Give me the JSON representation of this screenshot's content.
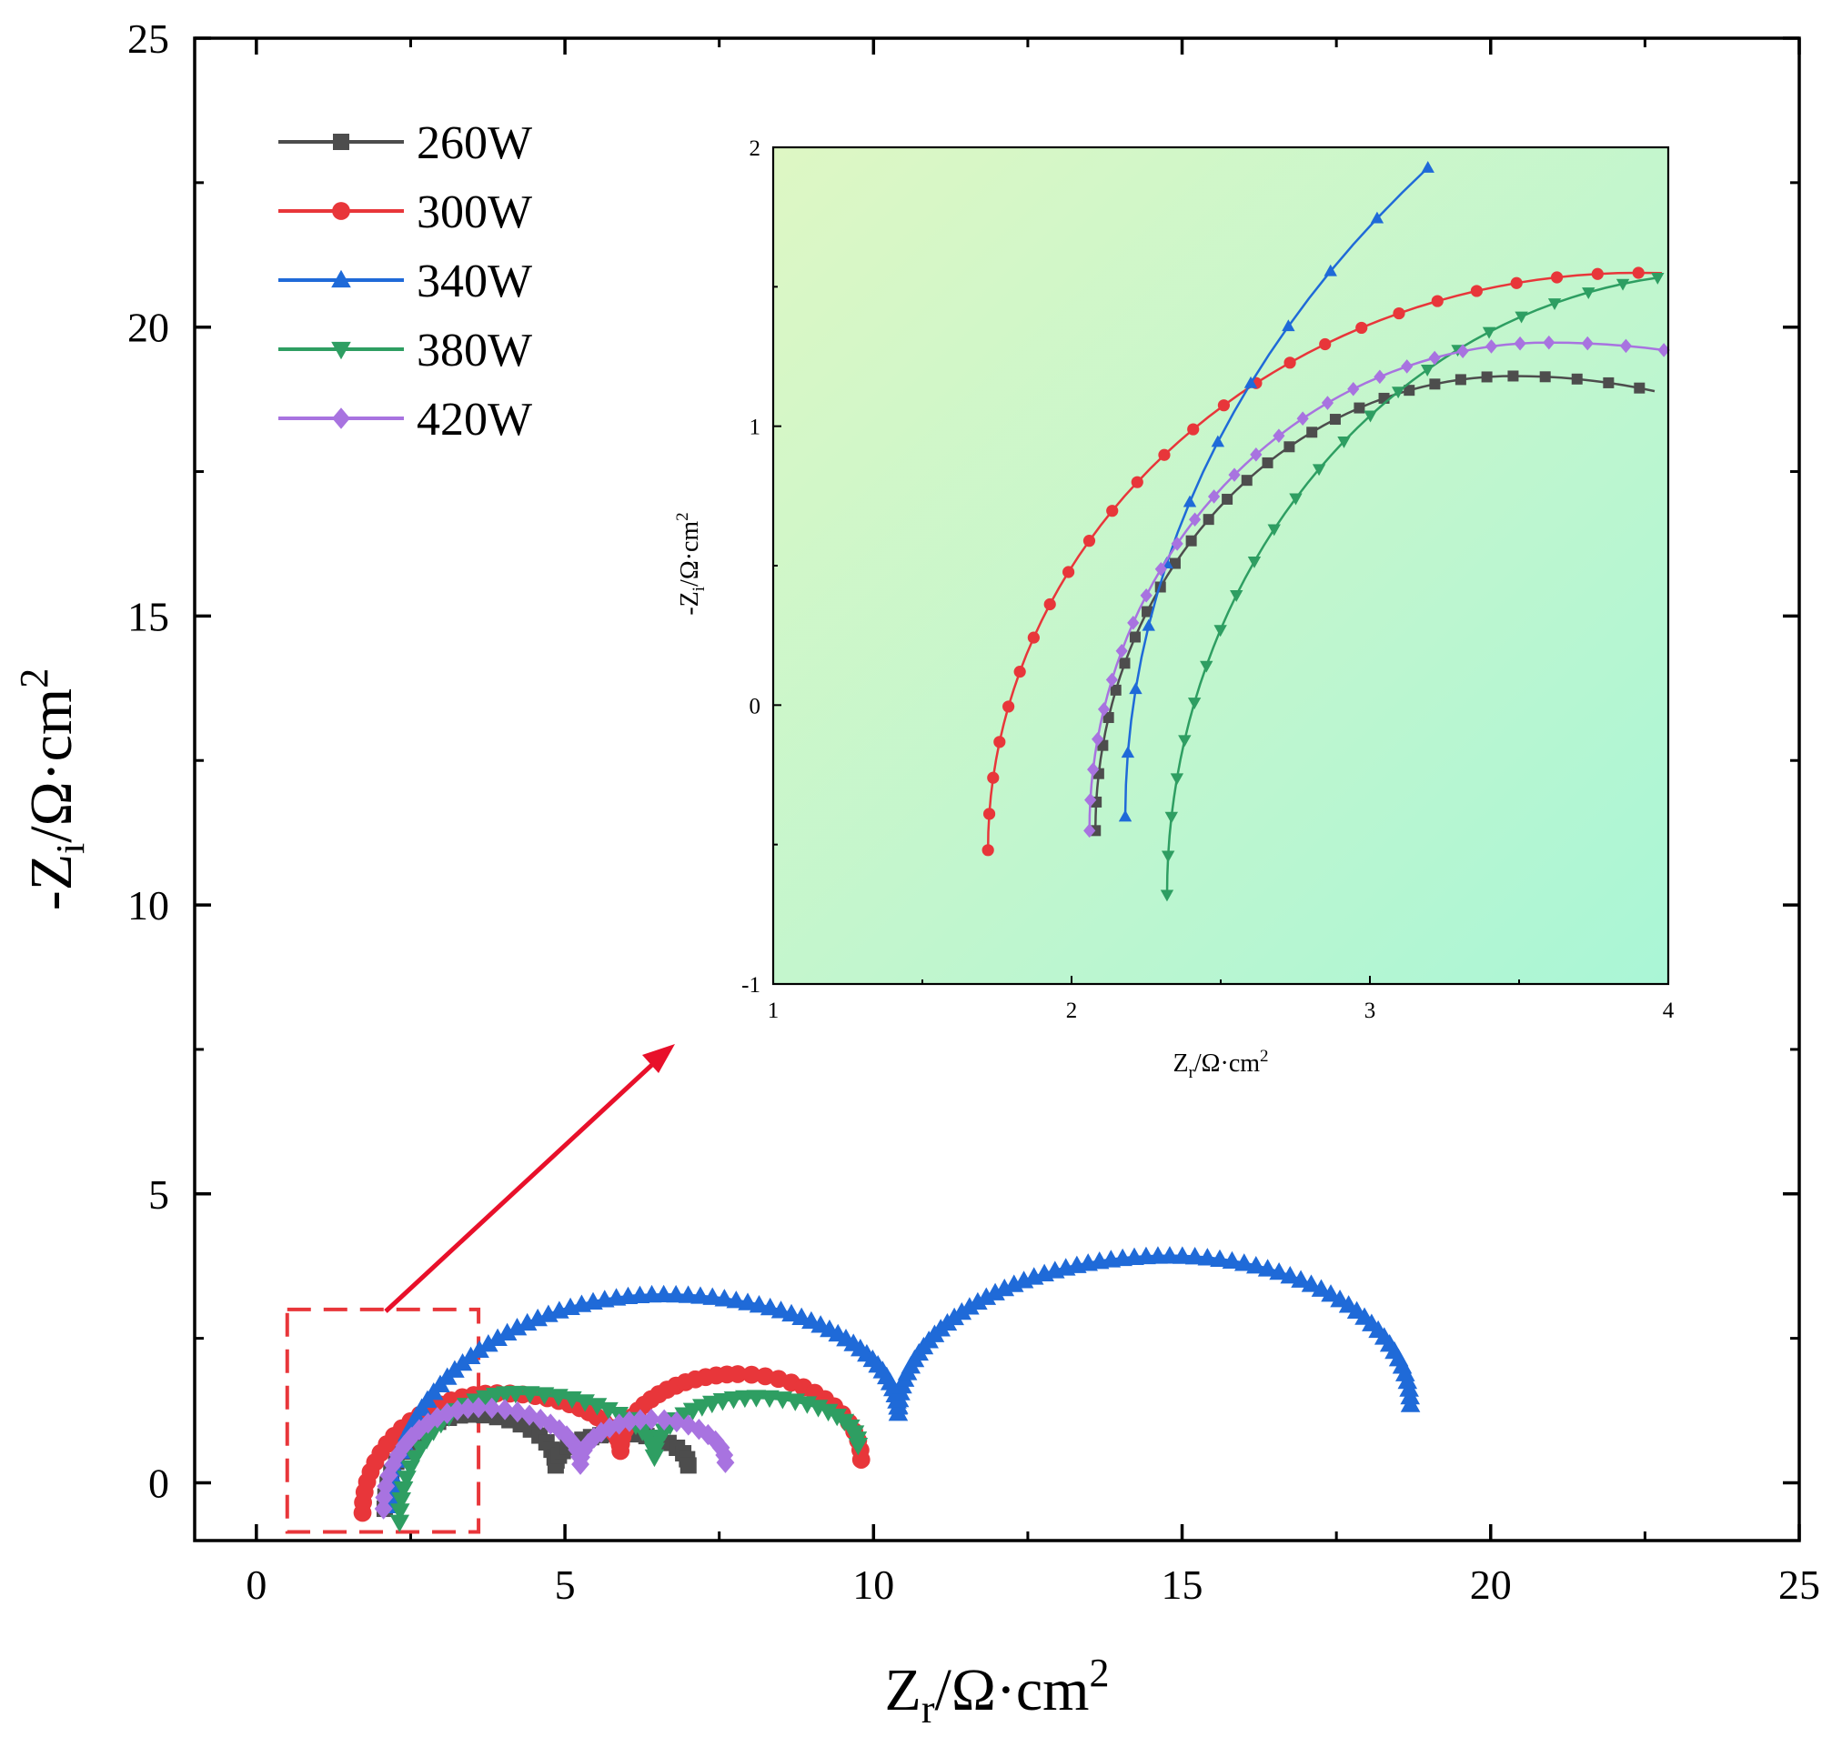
{
  "chart_data": {
    "type": "line",
    "title": "",
    "xlabel": "Z",
    "xlabel_sub": "r",
    "xlabel_unit": "/Ω·cm",
    "xlabel_sup": "2",
    "ylabel": "-Z",
    "ylabel_sub": "i",
    "ylabel_unit": "/Ω·cm",
    "ylabel_sup": "2",
    "xlim": [
      -1,
      25
    ],
    "ylim": [
      -1,
      25
    ],
    "xticks": [
      "0",
      "5",
      "10",
      "15",
      "20",
      "25"
    ],
    "yticks": [
      "0",
      "5",
      "10",
      "15",
      "20",
      "25"
    ],
    "grid": false,
    "legend": {
      "placement": "top-left",
      "entries": [
        "260W",
        "300W",
        "340W",
        "380W",
        "420W"
      ]
    },
    "series": [
      {
        "name": "260W",
        "color": "#4d4d4d",
        "marker": "square",
        "arcs": [
          {
            "x_start": 2.08,
            "y_start": -0.45,
            "x_end": 4.85,
            "peak_x": 3.48,
            "peak_y": 1.18,
            "end_y": 0.3
          },
          {
            "x_start": 4.85,
            "y_start": 0.3,
            "x_end": 7.0,
            "peak_x": 5.9,
            "peak_y": 0.85,
            "end_y": 0.3
          }
        ]
      },
      {
        "name": "300W",
        "color": "#e8363a",
        "marker": "circle",
        "arcs": [
          {
            "x_start": 1.72,
            "y_start": -0.52,
            "x_end": 5.9,
            "peak_x": 3.9,
            "peak_y": 1.55,
            "end_y": 0.55
          },
          {
            "x_start": 5.9,
            "y_start": 0.55,
            "x_end": 9.8,
            "peak_x": 7.8,
            "peak_y": 1.88,
            "end_y": 0.4
          }
        ]
      },
      {
        "name": "340W",
        "color": "#1f6ad8",
        "marker": "triangle-up",
        "arcs": [
          {
            "x_start": 2.18,
            "y_start": -0.4,
            "x_end": 10.4,
            "peak_x": 6.6,
            "peak_y": 3.25,
            "end_y": 1.2
          },
          {
            "x_start": 10.4,
            "y_start": 1.2,
            "x_end": 18.7,
            "peak_x": 14.8,
            "peak_y": 3.92,
            "end_y": 1.35
          }
        ]
      },
      {
        "name": "380W",
        "color": "#2e9e62",
        "marker": "triangle-down",
        "arcs": [
          {
            "x_start": 2.32,
            "y_start": -0.68,
            "x_end": 6.45,
            "peak_x": 4.2,
            "peak_y": 1.55,
            "end_y": 0.45
          },
          {
            "x_start": 6.45,
            "y_start": 0.45,
            "x_end": 9.75,
            "peak_x": 8.1,
            "peak_y": 1.48,
            "end_y": 0.65
          }
        ]
      },
      {
        "name": "420W",
        "color": "#a873e0",
        "marker": "diamond",
        "arcs": [
          {
            "x_start": 2.06,
            "y_start": -0.45,
            "x_end": 5.25,
            "peak_x": 3.6,
            "peak_y": 1.3,
            "end_y": 0.32
          },
          {
            "x_start": 5.25,
            "y_start": 0.32,
            "x_end": 7.6,
            "peak_x": 6.4,
            "peak_y": 1.1,
            "end_y": 0.35
          }
        ]
      }
    ],
    "zoom_region": {
      "x_range": [
        0.5,
        3.6
      ],
      "y_range": [
        -0.85,
        3.0
      ],
      "style": "red dashed rectangle"
    },
    "annotation": "red arrow from zoom region to inset",
    "inset": {
      "xlim": [
        1,
        4
      ],
      "ylim": [
        -1,
        2
      ],
      "xticks": [
        "1",
        "2",
        "3",
        "4"
      ],
      "yticks": [
        "-1",
        "0",
        "1",
        "2"
      ],
      "xlabel": "Z",
      "xlabel_sub": "r",
      "xlabel_unit": "/Ω·cm",
      "xlabel_sup": "2",
      "ylabel": "-Z",
      "ylabel_sub": "i",
      "ylabel_unit": "/Ω·cm",
      "ylabel_sup": "2",
      "background": {
        "start": "#def7c4",
        "end": "#aaf6d6"
      }
    }
  }
}
